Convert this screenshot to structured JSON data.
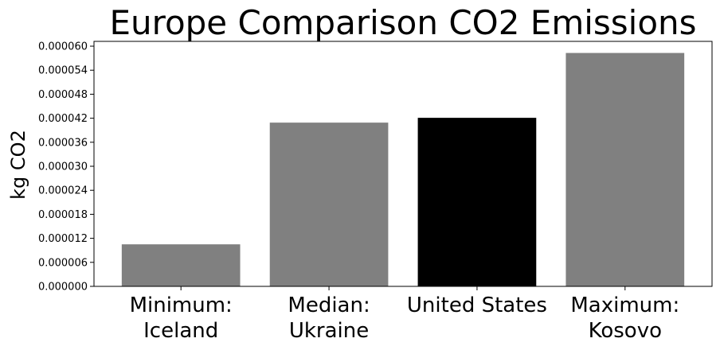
{
  "chart_data": {
    "type": "bar",
    "title": "Europe Comparison CO2 Emissions",
    "xlabel": "",
    "ylabel": "kg CO2",
    "ylim": [
      0,
      6.12e-05
    ],
    "yticks": [
      "0.000000",
      "0.000006",
      "0.000012",
      "0.000018",
      "0.000024",
      "0.000030",
      "0.000036",
      "0.000042",
      "0.000048",
      "0.000054",
      "0.000060"
    ],
    "categories": [
      [
        "Minimum:",
        "Iceland"
      ],
      [
        "Median:",
        "Ukraine"
      ],
      [
        "United States"
      ],
      [
        "Maximum:",
        "Kosovo"
      ]
    ],
    "values": [
      1.05e-05,
      4.09e-05,
      4.21e-05,
      5.83e-05
    ],
    "colors": [
      "#808080",
      "#808080",
      "#000000",
      "#808080"
    ],
    "grid": false,
    "legend": "none"
  }
}
